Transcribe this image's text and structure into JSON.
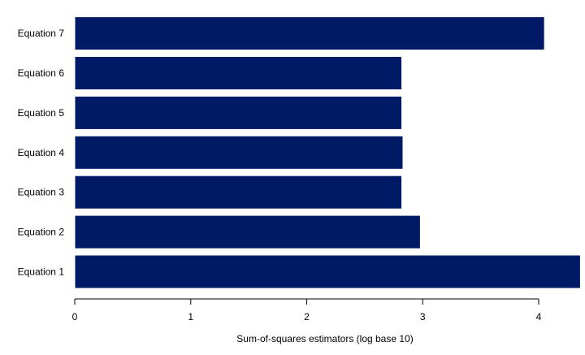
{
  "chart_data": {
    "type": "bar",
    "orientation": "horizontal",
    "categories": [
      "Equation 1",
      "Equation 2",
      "Equation 3",
      "Equation 4",
      "Equation 5",
      "Equation 6",
      "Equation 7"
    ],
    "values": [
      4.36,
      2.98,
      2.82,
      2.83,
      2.82,
      2.82,
      4.05
    ],
    "title": "",
    "xlabel": "Sum-of-squares estimators (log base 10)",
    "ylabel": "",
    "xlim": [
      0,
      4.36
    ],
    "xticks": [
      0,
      1,
      2,
      3,
      4
    ],
    "xtick_labels": [
      "0",
      "1",
      "2",
      "3",
      "4"
    ],
    "grid": false,
    "legend": "none",
    "bar_color": "#001a66",
    "bar_edge_color": "#ffffff"
  }
}
